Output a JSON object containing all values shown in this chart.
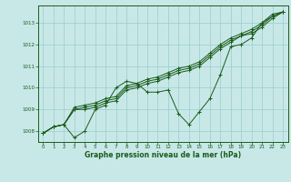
{
  "xlabel": "Graphe pression niveau de la mer (hPa)",
  "xlim": [
    -0.5,
    23.5
  ],
  "ylim": [
    1007.5,
    1013.8
  ],
  "yticks": [
    1008,
    1009,
    1010,
    1011,
    1012,
    1013
  ],
  "xticks": [
    0,
    1,
    2,
    3,
    4,
    5,
    6,
    7,
    8,
    9,
    10,
    11,
    12,
    13,
    14,
    15,
    16,
    17,
    18,
    19,
    20,
    21,
    22,
    23
  ],
  "background_color": "#c8e8e8",
  "grid_color": "#99cccc",
  "line_color": "#1a5c1a",
  "text_color": "#1a5c1a",
  "series": [
    [
      1007.9,
      1008.2,
      1008.3,
      1007.7,
      1008.0,
      1009.0,
      1009.2,
      1010.0,
      1010.3,
      1010.2,
      1009.8,
      1009.8,
      1009.9,
      1008.8,
      1008.3,
      1008.9,
      1009.5,
      1010.6,
      1011.9,
      1012.0,
      1012.3,
      1013.0,
      1013.3,
      1013.5
    ],
    [
      1007.9,
      1008.2,
      1008.3,
      1009.0,
      1009.0,
      1009.1,
      1009.3,
      1009.4,
      1009.9,
      1010.0,
      1010.2,
      1010.3,
      1010.5,
      1010.7,
      1010.8,
      1011.0,
      1011.4,
      1011.8,
      1012.1,
      1012.4,
      1012.5,
      1012.8,
      1013.2,
      1013.5
    ],
    [
      1007.9,
      1008.2,
      1008.3,
      1009.0,
      1009.1,
      1009.2,
      1009.4,
      1009.5,
      1010.0,
      1010.1,
      1010.3,
      1010.4,
      1010.6,
      1010.8,
      1010.9,
      1011.1,
      1011.5,
      1011.9,
      1012.2,
      1012.4,
      1012.6,
      1012.9,
      1013.3,
      1013.5
    ],
    [
      1007.9,
      1008.2,
      1008.3,
      1009.1,
      1009.2,
      1009.3,
      1009.5,
      1009.6,
      1010.1,
      1010.2,
      1010.4,
      1010.5,
      1010.7,
      1010.9,
      1011.0,
      1011.2,
      1011.6,
      1012.0,
      1012.3,
      1012.5,
      1012.7,
      1013.0,
      1013.4,
      1013.5
    ]
  ]
}
